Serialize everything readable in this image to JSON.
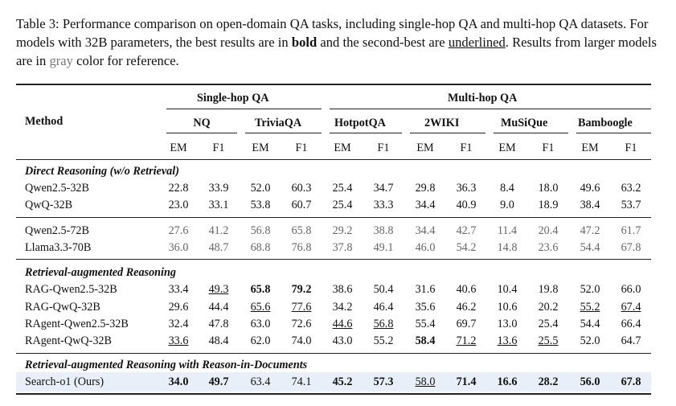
{
  "caption": {
    "p1": "Table 3: Performance comparison on open-domain QA tasks, including single-hop QA and multi-hop QA datasets. For models with 32B parameters, the best results are in ",
    "bold_word": "bold",
    "p2": " and the second-best are ",
    "underline_word": "underlined",
    "p3": ". Results from larger models are in ",
    "gray_word": "gray",
    "p4": " color for reference."
  },
  "header": {
    "method": "Method",
    "single_hop": "Single-hop QA",
    "multi_hop": "Multi-hop QA",
    "datasets": [
      "NQ",
      "TriviaQA",
      "HotpotQA",
      "2WIKI",
      "MuSiQue",
      "Bamboogle"
    ],
    "metrics": [
      "EM",
      "F1",
      "EM",
      "F1",
      "EM",
      "F1",
      "EM",
      "F1",
      "EM",
      "F1",
      "EM",
      "F1"
    ]
  },
  "sections": {
    "direct": "Direct Reasoning (w/o Retrieval)",
    "rag": "Retrieval-augmented Reasoning",
    "rid": "Retrieval-augmented Reasoning with Reason-in-Documents"
  },
  "rows": {
    "qwen25_32b": {
      "method": "Qwen2.5-32B",
      "values": [
        "22.8",
        "33.9",
        "52.0",
        "60.3",
        "25.4",
        "34.7",
        "29.8",
        "36.3",
        "8.4",
        "18.0",
        "49.6",
        "63.2"
      ]
    },
    "qwq_32b": {
      "method": "QwQ-32B",
      "values": [
        "23.0",
        "33.1",
        "53.8",
        "60.7",
        "25.4",
        "33.3",
        "34.4",
        "40.9",
        "9.0",
        "18.9",
        "38.4",
        "53.7"
      ]
    },
    "qwen25_72b": {
      "method": "Qwen2.5-72B",
      "values": [
        "27.6",
        "41.2",
        "56.8",
        "65.8",
        "29.2",
        "38.8",
        "34.4",
        "42.7",
        "11.4",
        "20.4",
        "47.2",
        "61.7"
      ]
    },
    "llama33_70b": {
      "method": "Llama3.3-70B",
      "values": [
        "36.0",
        "48.7",
        "68.8",
        "76.8",
        "37.8",
        "49.1",
        "46.0",
        "54.2",
        "14.8",
        "23.6",
        "54.4",
        "67.8"
      ]
    },
    "rag_qwen": {
      "method": "RAG-Qwen2.5-32B",
      "values": [
        "33.4",
        "49.3",
        "65.8",
        "79.2",
        "38.6",
        "50.4",
        "31.6",
        "40.6",
        "10.4",
        "19.8",
        "52.0",
        "66.0"
      ]
    },
    "rag_qwq": {
      "method": "RAG-QwQ-32B",
      "values": [
        "29.6",
        "44.4",
        "65.6",
        "77.6",
        "34.2",
        "46.4",
        "35.6",
        "46.2",
        "10.6",
        "20.2",
        "55.2",
        "67.4"
      ]
    },
    "ragent_qwen": {
      "method": "RAgent-Qwen2.5-32B",
      "values": [
        "32.4",
        "47.8",
        "63.0",
        "72.6",
        "44.6",
        "56.8",
        "55.4",
        "69.7",
        "13.0",
        "25.4",
        "54.4",
        "66.4"
      ]
    },
    "ragent_qwq": {
      "method": "RAgent-QwQ-32B",
      "values": [
        "33.6",
        "48.4",
        "62.0",
        "74.0",
        "43.0",
        "55.2",
        "58.4",
        "71.2",
        "13.6",
        "25.5",
        "52.0",
        "64.7"
      ]
    },
    "search_o1": {
      "method": "Search-o1 (Ours)",
      "values": [
        "34.0",
        "49.7",
        "63.4",
        "74.1",
        "45.2",
        "57.3",
        "58.0",
        "71.4",
        "16.6",
        "28.2",
        "56.0",
        "67.8"
      ]
    }
  }
}
